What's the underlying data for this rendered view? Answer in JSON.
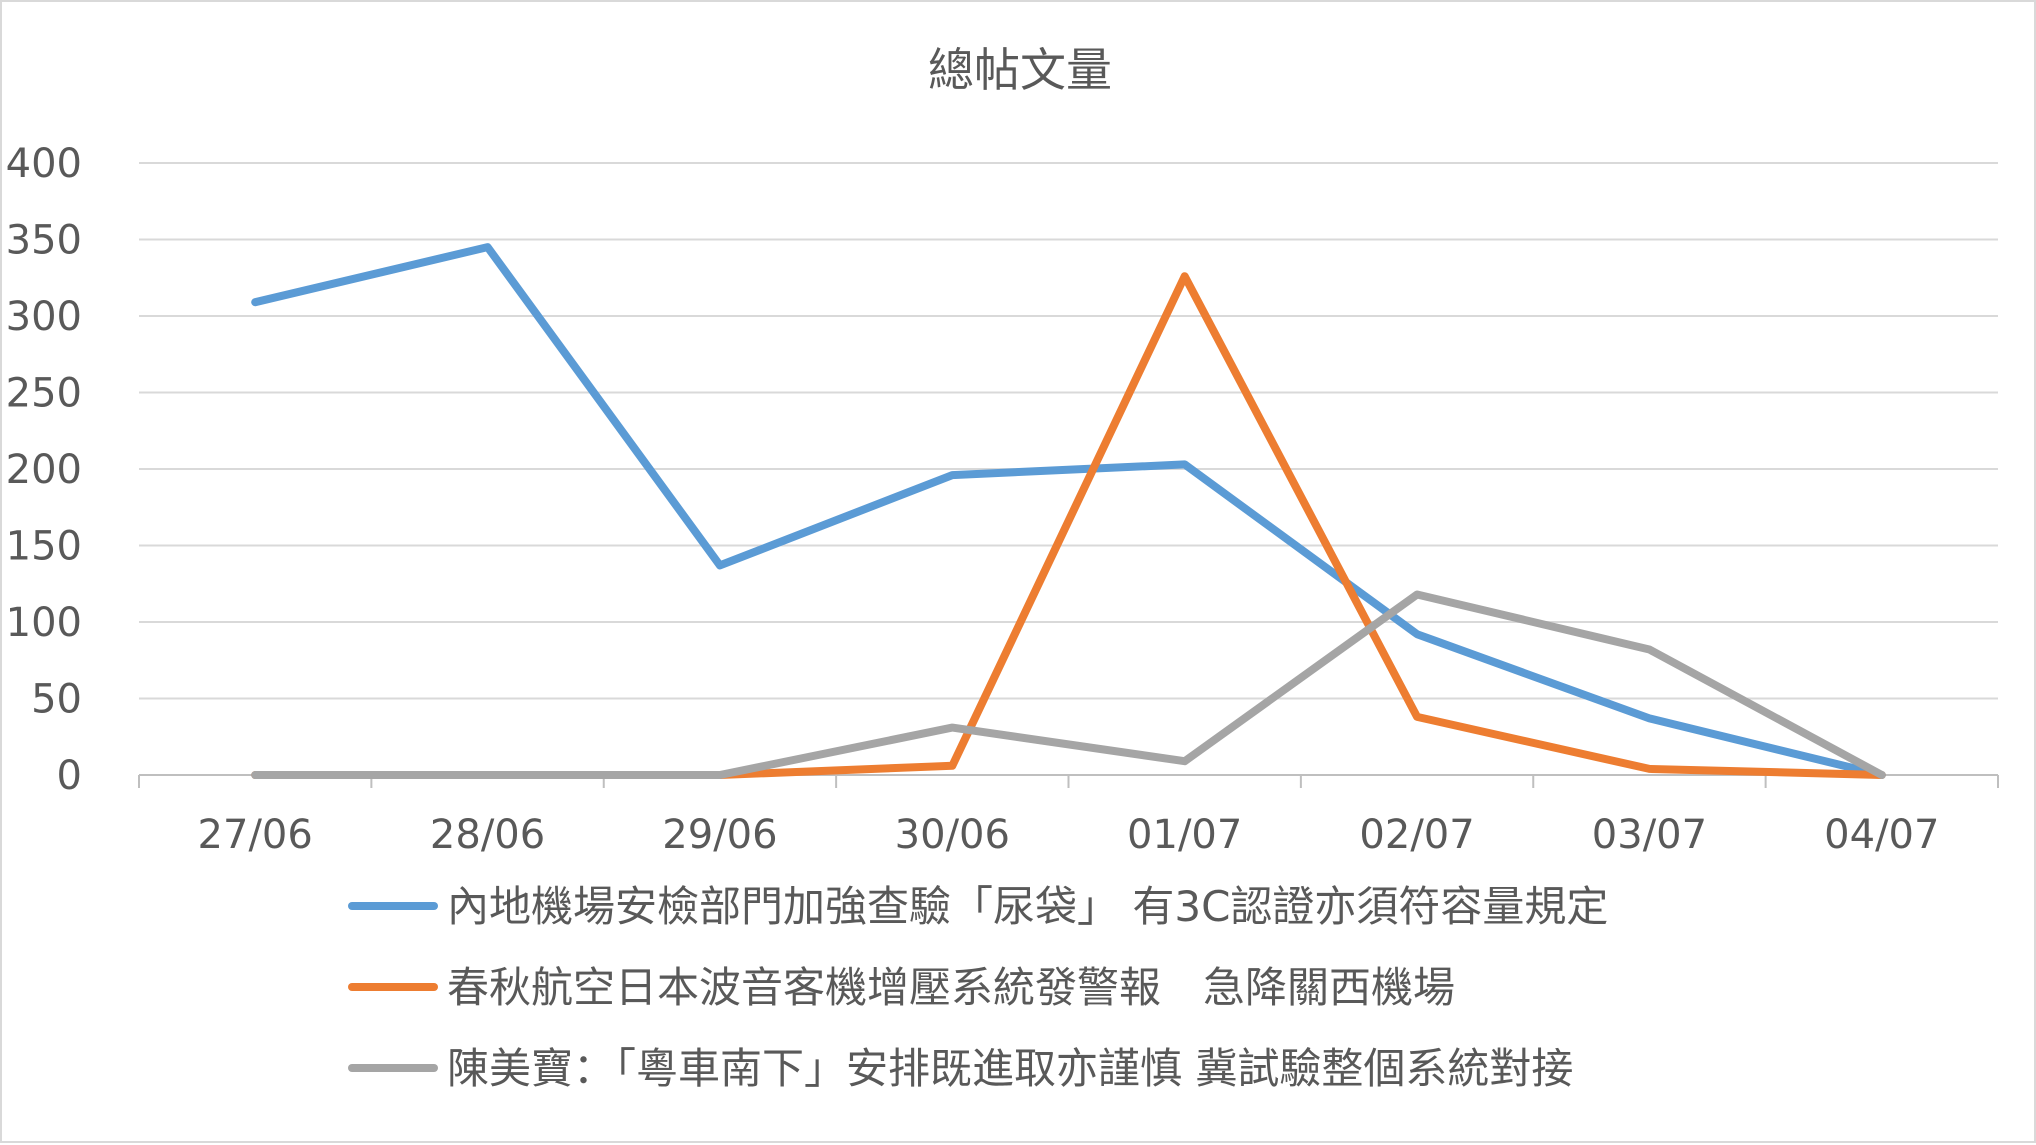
{
  "chart_data": {
    "type": "line",
    "title": "總帖文量",
    "xlabel": "",
    "ylabel": "",
    "categories": [
      "27/06",
      "28/06",
      "29/06",
      "30/06",
      "01/07",
      "02/07",
      "03/07",
      "04/07"
    ],
    "ylim": [
      0,
      400
    ],
    "yticks": [
      0,
      50,
      100,
      150,
      200,
      250,
      300,
      350,
      400
    ],
    "grid": true,
    "legend_position": "bottom",
    "series": [
      {
        "name": "內地機場安檢部門加強查驗「尿袋」 有3C認證亦須符容量規定",
        "color": "#5b9bd5",
        "values": [
          309,
          345,
          137,
          196,
          203,
          92,
          37,
          0
        ]
      },
      {
        "name": "春秋航空日本波音客機增壓系統發警報　急降關西機場",
        "color": "#ed7d31",
        "values": [
          0,
          0,
          0,
          6,
          326,
          38,
          4,
          0
        ]
      },
      {
        "name": "陳美寶：「粵車南下」安排既進取亦謹慎 冀試驗整個系統對接",
        "color": "#a5a5a5",
        "values": [
          0,
          0,
          0,
          31,
          9,
          118,
          82,
          0
        ]
      }
    ]
  }
}
